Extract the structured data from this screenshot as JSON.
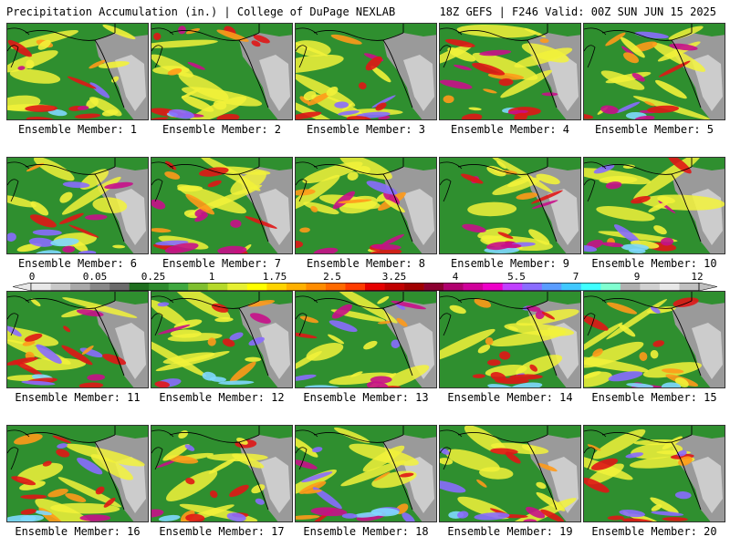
{
  "header": {
    "title_left": "Precipitation Accumulation (in.) | College of DuPage NEXLAB",
    "title_right": "18Z GEFS | F246 Valid: 00Z SUN JUN 15 2025"
  },
  "panels": [
    {
      "label": "Ensemble Member: 1"
    },
    {
      "label": "Ensemble Member: 2"
    },
    {
      "label": "Ensemble Member: 3"
    },
    {
      "label": "Ensemble Member: 4"
    },
    {
      "label": "Ensemble Member: 5"
    },
    {
      "label": "Ensemble Member: 6"
    },
    {
      "label": "Ensemble Member: 7"
    },
    {
      "label": "Ensemble Member: 8"
    },
    {
      "label": "Ensemble Member: 9"
    },
    {
      "label": "Ensemble Member: 10"
    },
    {
      "label": "Ensemble Member: 11"
    },
    {
      "label": "Ensemble Member: 12"
    },
    {
      "label": "Ensemble Member: 13"
    },
    {
      "label": "Ensemble Member: 14"
    },
    {
      "label": "Ensemble Member: 15"
    },
    {
      "label": "Ensemble Member: 16"
    },
    {
      "label": "Ensemble Member: 17"
    },
    {
      "label": "Ensemble Member: 18"
    },
    {
      "label": "Ensemble Member: 19"
    },
    {
      "label": "Ensemble Member: 20"
    }
  ],
  "colorbar": {
    "tick_labels": [
      "0",
      "0.05",
      "0.25",
      "1",
      "1.75",
      "2.5",
      "3.25",
      "4",
      "5.5",
      "7",
      "9",
      "12"
    ],
    "colors": [
      "#e8e8e8",
      "#c8c8c8",
      "#a8a8a8",
      "#888888",
      "#6b6b6b",
      "#1f6f1f",
      "#2e8b2e",
      "#3fa83f",
      "#7fbf2f",
      "#b5d92a",
      "#e6f032",
      "#ffff00",
      "#ffd400",
      "#ffb000",
      "#ff8c00",
      "#ff6a00",
      "#ff3c00",
      "#e60000",
      "#c00000",
      "#a00000",
      "#8b0030",
      "#b0006e",
      "#d0009a",
      "#ee00c8",
      "#c040ff",
      "#8a6cff",
      "#5a9cff",
      "#40c8ff",
      "#40ffff",
      "#80ffd0",
      "#b0b0b0",
      "#d0d0d0",
      "#e8e8e8",
      "#c0c0c0"
    ]
  },
  "palette": {
    "ocean": "#2f8f2f",
    "land": "#9a9a9a",
    "land_light": "#d8d8d8",
    "yellow": "#f2f23a",
    "orange": "#ff9a1a",
    "red": "#e01616",
    "magenta": "#c8108a",
    "purple": "#8a6cff",
    "cyan": "#7fd8ff"
  }
}
